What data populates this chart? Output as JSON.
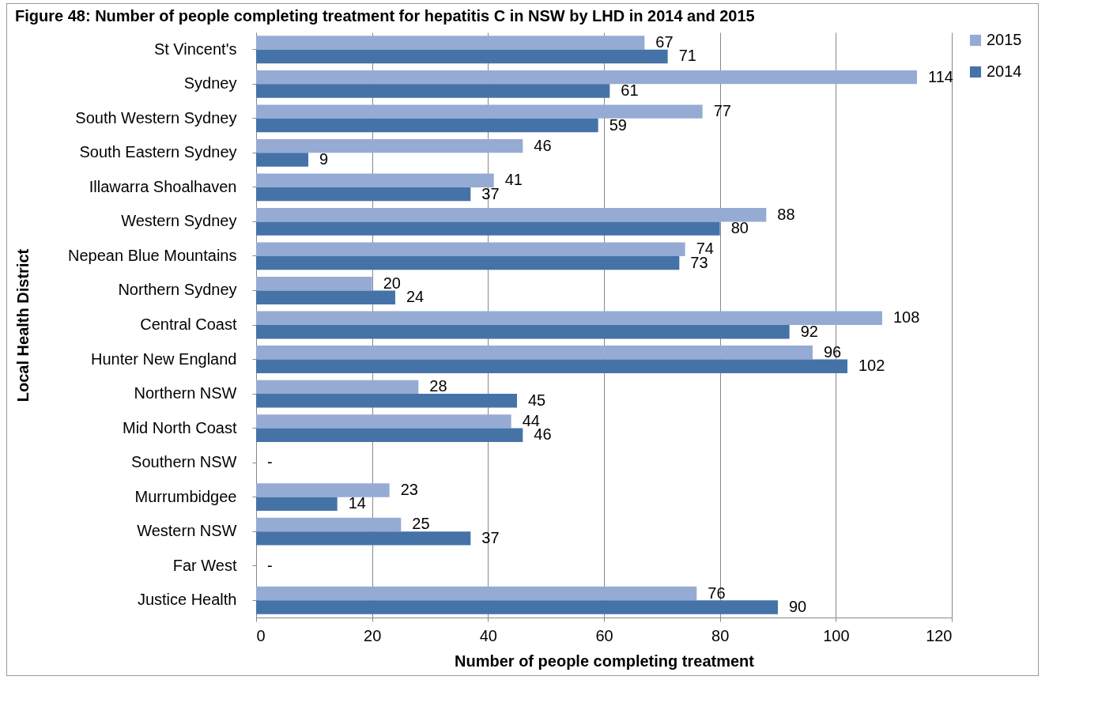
{
  "chart_data": {
    "type": "bar",
    "orientation": "horizontal",
    "title": "Figure 48: Number of people completing treatment for hepatitis C in NSW by LHD in 2014 and 2015",
    "xlabel": "Number of people completing treatment",
    "ylabel": "Local Health District",
    "categories": [
      "St Vincent's",
      "Sydney",
      "South Western Sydney",
      "South Eastern Sydney",
      "Illawarra Shoalhaven",
      "Western Sydney",
      "Nepean Blue Mountains",
      "Northern Sydney",
      "Central Coast",
      "Hunter New England",
      "Northern NSW",
      "Mid North Coast",
      "Southern NSW",
      "Murrumbidgee",
      "Western NSW",
      "Far West",
      "Justice Health"
    ],
    "series": [
      {
        "name": "2015",
        "color": "#95abd4",
        "values": [
          67,
          114,
          77,
          46,
          41,
          88,
          74,
          20,
          108,
          96,
          28,
          44,
          null,
          23,
          25,
          null,
          76
        ],
        "value_labels": [
          "67",
          "114",
          "77",
          "46",
          "41",
          "88",
          "74",
          "20",
          "108",
          "96",
          "28",
          "44",
          "-",
          "23",
          "25",
          "-",
          "76"
        ]
      },
      {
        "name": "2014",
        "color": "#4573a7",
        "values": [
          71,
          61,
          59,
          9,
          37,
          80,
          73,
          24,
          92,
          102,
          45,
          46,
          null,
          14,
          37,
          null,
          90
        ],
        "value_labels": [
          "71",
          "61",
          "59",
          "9",
          "37",
          "80",
          "73",
          "24",
          "92",
          "102",
          "45",
          "46",
          null,
          "14",
          "37",
          null,
          "90"
        ]
      }
    ],
    "xlim": [
      0,
      120
    ],
    "xticks": [
      0,
      20,
      40,
      60,
      80,
      100,
      120
    ],
    "grid": "x",
    "legend": "right"
  }
}
